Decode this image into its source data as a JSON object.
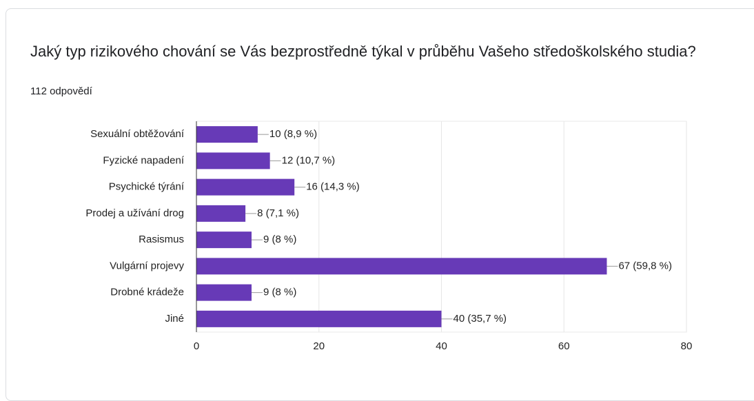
{
  "chart_data": {
    "type": "bar",
    "orientation": "horizontal",
    "title": "Jaký typ rizikového chování se Vás bezprostředně týkal v průběhu Vašeho středoškolského studia?",
    "subtitle": "112 odpovědí",
    "categories": [
      "Sexuální obtěžování",
      "Fyzické napadení",
      "Psychické týrání",
      "Prodej a užívání drog",
      "Rasismus",
      "Vulgární projevy",
      "Drobné krádeže",
      "Jiné"
    ],
    "values": [
      10,
      12,
      16,
      8,
      9,
      67,
      9,
      40
    ],
    "value_labels": [
      "10 (8,9 %)",
      "12 (10,7 %)",
      "16 (14,3 %)",
      "8 (7,1 %)",
      "9 (8 %)",
      "67 (59,8 %)",
      "9 (8 %)",
      "40 (35,7 %)"
    ],
    "color": "#673ab7",
    "xlim": [
      0,
      80
    ],
    "xticks": [
      0,
      20,
      40,
      60,
      80
    ],
    "grid": true
  }
}
